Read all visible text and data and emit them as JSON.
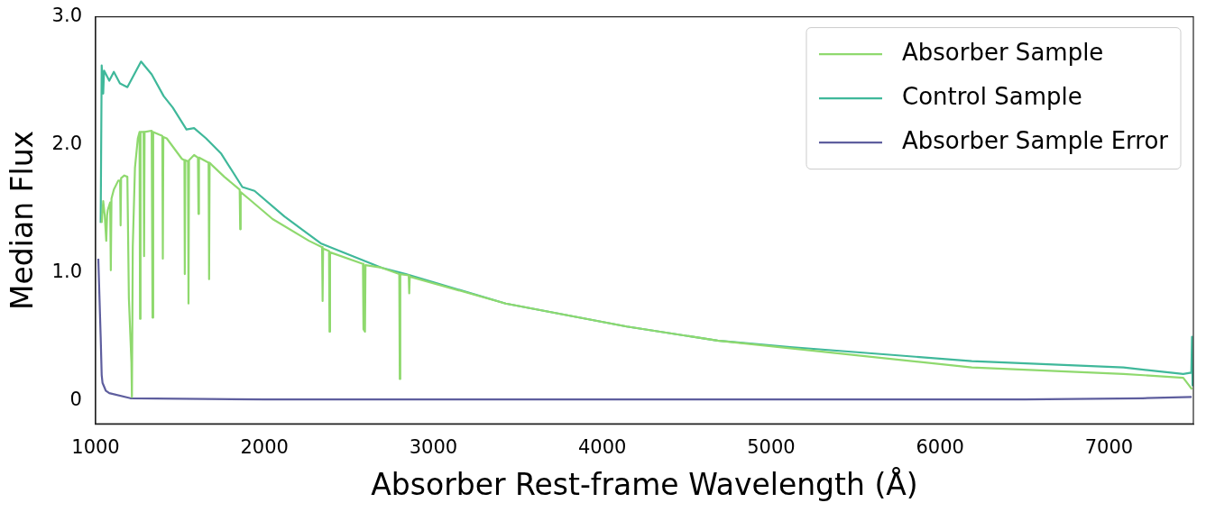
{
  "chart_data": {
    "type": "line",
    "xlabel": "Absorber Rest-frame Wavelength (Å)",
    "ylabel": "Median Flux",
    "xlim": [
      1000,
      7500
    ],
    "xticks": [
      1000,
      2000,
      3000,
      4000,
      5000,
      6000,
      7000
    ],
    "ylim": [
      -0.18,
      3.0
    ],
    "yticks": [
      0,
      {
        "value": 1,
        "label": "1.0"
      },
      {
        "value": 2,
        "label": "2.0"
      },
      {
        "value": 3,
        "label": "3.0"
      }
    ],
    "grid": false,
    "legend": "top right",
    "marker": "none",
    "line_style": "solid",
    "series": [
      {
        "name": "Absorber Sample",
        "color": "#8fd96e",
        "x": [
          1036,
          1045,
          1054,
          1063,
          1068,
          1072,
          1086,
          1090,
          1094,
          1108,
          1134,
          1145,
          1148,
          1151,
          1170,
          1188,
          1197,
          1212,
          1215,
          1220,
          1233,
          1250,
          1260,
          1263,
          1266,
          1284,
          1287,
          1290,
          1332,
          1337,
          1341,
          1376,
          1395,
          1398,
          1401,
          1421,
          1511,
          1526,
          1528,
          1531,
          1547,
          1550,
          1553,
          1583,
          1606,
          1609,
          1612,
          1669,
          1672,
          1675,
          1690,
          1762,
          1853,
          1856,
          1859,
          1905,
          2048,
          2263,
          2341,
          2344,
          2347,
          2382,
          2385,
          2388,
          2583,
          2586,
          2595,
          2598,
          2693,
          2798,
          2801,
          2804,
          2854,
          2857,
          2860,
          3428,
          4145,
          4683,
          5113,
          6188,
          7086,
          7440,
          7492
        ],
        "values": [
          1.39,
          1.56,
          1.45,
          1.25,
          1.45,
          1.49,
          1.55,
          1.02,
          1.58,
          1.65,
          1.72,
          1.72,
          1.37,
          1.74,
          1.76,
          1.75,
          0.8,
          0.3,
          0.03,
          1.2,
          1.82,
          2.05,
          2.1,
          0.64,
          2.1,
          2.1,
          1.13,
          2.1,
          2.11,
          0.65,
          2.1,
          2.08,
          2.07,
          1.11,
          2.06,
          2.05,
          1.89,
          1.88,
          0.99,
          1.88,
          1.87,
          0.76,
          1.88,
          1.92,
          1.9,
          1.46,
          1.9,
          1.86,
          0.95,
          1.86,
          1.84,
          1.75,
          1.65,
          1.34,
          1.63,
          1.58,
          1.42,
          1.25,
          1.2,
          0.78,
          1.19,
          1.17,
          0.54,
          1.16,
          1.07,
          0.56,
          0.54,
          1.06,
          1.04,
          0.99,
          0.17,
          0.99,
          0.98,
          0.84,
          0.97,
          0.76,
          0.58,
          0.47,
          0.41,
          0.26,
          0.21,
          0.18,
          0.09
        ]
      },
      {
        "name": "Control Sample",
        "color": "#3fb89a",
        "x": [
          1030,
          1036,
          1045,
          1050,
          1081,
          1108,
          1144,
          1188,
          1269,
          1332,
          1403,
          1457,
          1538,
          1583,
          1654,
          1744,
          1869,
          1941,
          2118,
          2333,
          2693,
          2837,
          3428,
          4145,
          4683,
          5113,
          6188,
          7086,
          7440,
          7488,
          7492,
          7495,
          7500
        ],
        "values": [
          1.39,
          2.62,
          2.4,
          2.58,
          2.5,
          2.57,
          2.48,
          2.45,
          2.65,
          2.55,
          2.38,
          2.29,
          2.12,
          2.13,
          2.05,
          1.93,
          1.67,
          1.64,
          1.44,
          1.23,
          1.04,
          0.99,
          0.76,
          0.58,
          0.47,
          0.42,
          0.31,
          0.26,
          0.21,
          0.22,
          0.5,
          0.12,
          0.2
        ]
      },
      {
        "name": "Absorber Sample Error",
        "color": "#5e5e9e",
        "x": [
          1016,
          1030,
          1036,
          1041,
          1060,
          1081,
          1206,
          2000,
          6500,
          7200,
          7490
        ],
        "values": [
          1.11,
          0.5,
          0.2,
          0.14,
          0.08,
          0.06,
          0.02,
          0.01,
          0.01,
          0.02,
          0.03
        ]
      }
    ]
  }
}
